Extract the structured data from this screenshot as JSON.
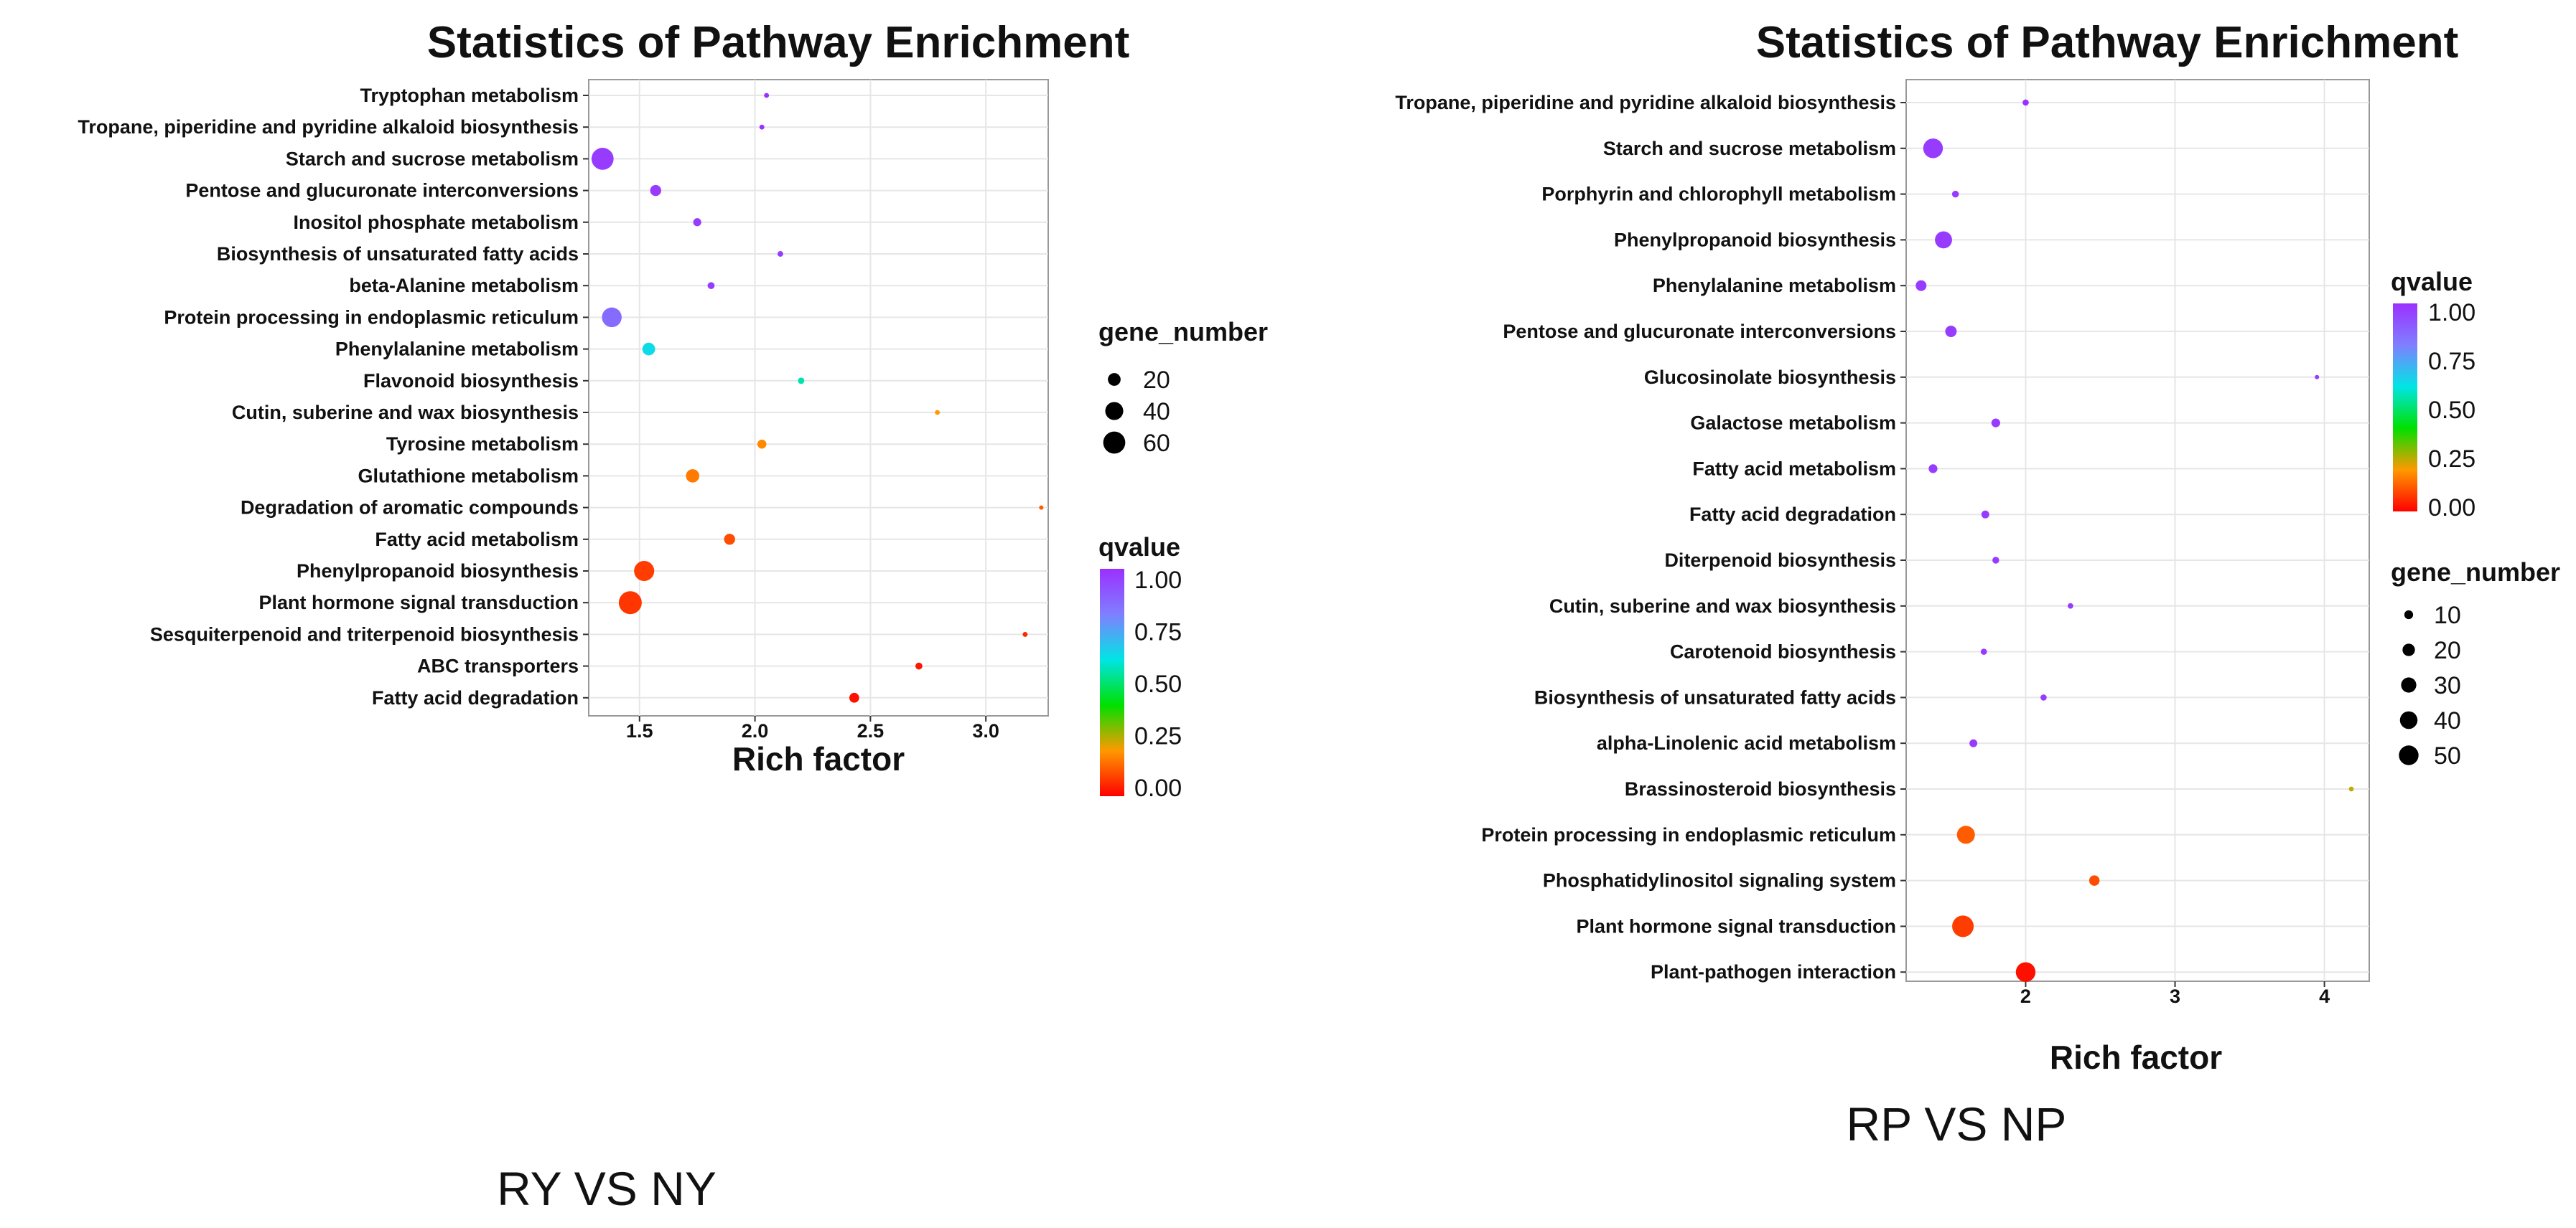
{
  "chart_data": [
    {
      "type": "scatter",
      "title": "Statistics of Pathway Enrichment",
      "xlabel": "Rich factor",
      "caption": "RY VS NY",
      "xlim": [
        1.28,
        3.27
      ],
      "xticks": [
        "1.5",
        "2.0",
        "2.5",
        "3.0"
      ],
      "size_legend_title": "gene_number",
      "size_legend": [
        20,
        40,
        60
      ],
      "color_legend_title": "qvalue",
      "color_legend": [
        "1.00",
        "0.75",
        "0.50",
        "0.25",
        "0.00"
      ],
      "points": [
        {
          "pathway": "Tryptophan metabolism",
          "rich_factor": 2.05,
          "gene_number": 3,
          "qvalue": 1.0
        },
        {
          "pathway": "Tropane, piperidine and pyridine alkaloid biosynthesis",
          "rich_factor": 2.03,
          "gene_number": 3,
          "qvalue": 1.0
        },
        {
          "pathway": "Starch and sucrose metabolism",
          "rich_factor": 1.34,
          "gene_number": 60,
          "qvalue": 0.97
        },
        {
          "pathway": "Pentose and glucuronate interconversions",
          "rich_factor": 1.57,
          "gene_number": 15,
          "qvalue": 0.97
        },
        {
          "pathway": "Inositol phosphate metabolism",
          "rich_factor": 1.75,
          "gene_number": 8,
          "qvalue": 0.97
        },
        {
          "pathway": "Biosynthesis of unsaturated fatty acids",
          "rich_factor": 2.11,
          "gene_number": 4,
          "qvalue": 0.97
        },
        {
          "pathway": "beta-Alanine metabolism",
          "rich_factor": 1.81,
          "gene_number": 6,
          "qvalue": 0.97
        },
        {
          "pathway": "Protein processing in endoplasmic reticulum",
          "rich_factor": 1.38,
          "gene_number": 48,
          "qvalue": 0.85
        },
        {
          "pathway": "Phenylalanine metabolism",
          "rich_factor": 1.54,
          "gene_number": 20,
          "qvalue": 0.62
        },
        {
          "pathway": "Flavonoid biosynthesis",
          "rich_factor": 2.2,
          "gene_number": 5,
          "qvalue": 0.55
        },
        {
          "pathway": "Cutin, suberine and wax biosynthesis",
          "rich_factor": 2.79,
          "gene_number": 3,
          "qvalue": 0.2
        },
        {
          "pathway": "Tyrosine metabolism",
          "rich_factor": 2.03,
          "gene_number": 10,
          "qvalue": 0.18
        },
        {
          "pathway": "Glutathione metabolism",
          "rich_factor": 1.73,
          "gene_number": 22,
          "qvalue": 0.16
        },
        {
          "pathway": "Degradation of aromatic compounds",
          "rich_factor": 3.24,
          "gene_number": 2,
          "qvalue": 0.12
        },
        {
          "pathway": "Fatty acid metabolism",
          "rich_factor": 1.89,
          "gene_number": 15,
          "qvalue": 0.1
        },
        {
          "pathway": "Phenylpropanoid biosynthesis",
          "rich_factor": 1.52,
          "gene_number": 50,
          "qvalue": 0.08
        },
        {
          "pathway": "Plant hormone signal transduction",
          "rich_factor": 1.46,
          "gene_number": 65,
          "qvalue": 0.07
        },
        {
          "pathway": "Sesquiterpenoid and triterpenoid biosynthesis",
          "rich_factor": 3.17,
          "gene_number": 3,
          "qvalue": 0.05
        },
        {
          "pathway": "ABC transporters",
          "rich_factor": 2.71,
          "gene_number": 6,
          "qvalue": 0.03
        },
        {
          "pathway": "Fatty acid degradation",
          "rich_factor": 2.43,
          "gene_number": 12,
          "qvalue": 0.02
        }
      ]
    },
    {
      "type": "scatter",
      "title": "Statistics of Pathway Enrichment",
      "xlabel": "Rich factor",
      "caption": "RP VS NP",
      "xlim": [
        1.2,
        4.3
      ],
      "xticks": [
        "2",
        "3",
        "4"
      ],
      "size_legend_title": "gene_number",
      "size_legend": [
        10,
        20,
        30,
        40,
        50
      ],
      "color_legend_title": "qvalue",
      "color_legend": [
        "1.00",
        "0.75",
        "0.50",
        "0.25",
        "0.00"
      ],
      "points": [
        {
          "pathway": "Tropane, piperidine and pyridine alkaloid biosynthesis",
          "rich_factor": 2.0,
          "gene_number": 5,
          "qvalue": 1.0
        },
        {
          "pathway": "Starch and sucrose metabolism",
          "rich_factor": 1.38,
          "gene_number": 50,
          "qvalue": 0.97
        },
        {
          "pathway": "Porphyrin and chlorophyll metabolism",
          "rich_factor": 1.53,
          "gene_number": 6,
          "qvalue": 0.97
        },
        {
          "pathway": "Phenylpropanoid biosynthesis",
          "rich_factor": 1.45,
          "gene_number": 38,
          "qvalue": 0.97
        },
        {
          "pathway": "Phenylalanine metabolism",
          "rich_factor": 1.3,
          "gene_number": 15,
          "qvalue": 0.97
        },
        {
          "pathway": "Pentose and glucuronate interconversions",
          "rich_factor": 1.5,
          "gene_number": 17,
          "qvalue": 0.97
        },
        {
          "pathway": "Glucosinolate biosynthesis",
          "rich_factor": 3.95,
          "gene_number": 2,
          "qvalue": 0.97
        },
        {
          "pathway": "Galactose metabolism",
          "rich_factor": 1.8,
          "gene_number": 10,
          "qvalue": 0.97
        },
        {
          "pathway": "Fatty acid metabolism",
          "rich_factor": 1.38,
          "gene_number": 10,
          "qvalue": 0.97
        },
        {
          "pathway": "Fatty acid degradation",
          "rich_factor": 1.73,
          "gene_number": 8,
          "qvalue": 0.97
        },
        {
          "pathway": "Diterpenoid biosynthesis",
          "rich_factor": 1.8,
          "gene_number": 6,
          "qvalue": 0.97
        },
        {
          "pathway": "Cutin, suberine and wax biosynthesis",
          "rich_factor": 2.3,
          "gene_number": 4,
          "qvalue": 0.97
        },
        {
          "pathway": "Carotenoid biosynthesis",
          "rich_factor": 1.72,
          "gene_number": 5,
          "qvalue": 0.97
        },
        {
          "pathway": "Biosynthesis of unsaturated fatty acids",
          "rich_factor": 2.12,
          "gene_number": 5,
          "qvalue": 0.97
        },
        {
          "pathway": "alpha-Linolenic acid metabolism",
          "rich_factor": 1.65,
          "gene_number": 8,
          "qvalue": 0.97
        },
        {
          "pathway": "Brassinosteroid biosynthesis",
          "rich_factor": 4.18,
          "gene_number": 3,
          "qvalue": 0.25
        },
        {
          "pathway": "Protein processing in endoplasmic reticulum",
          "rich_factor": 1.6,
          "gene_number": 42,
          "qvalue": 0.12
        },
        {
          "pathway": "Phosphatidylinositol signaling system",
          "rich_factor": 2.46,
          "gene_number": 14,
          "qvalue": 0.1
        },
        {
          "pathway": "Plant hormone signal transduction",
          "rich_factor": 1.58,
          "gene_number": 60,
          "qvalue": 0.08
        },
        {
          "pathway": "Plant-pathogen interaction",
          "rich_factor": 2.0,
          "gene_number": 50,
          "qvalue": 0.02
        }
      ]
    }
  ]
}
